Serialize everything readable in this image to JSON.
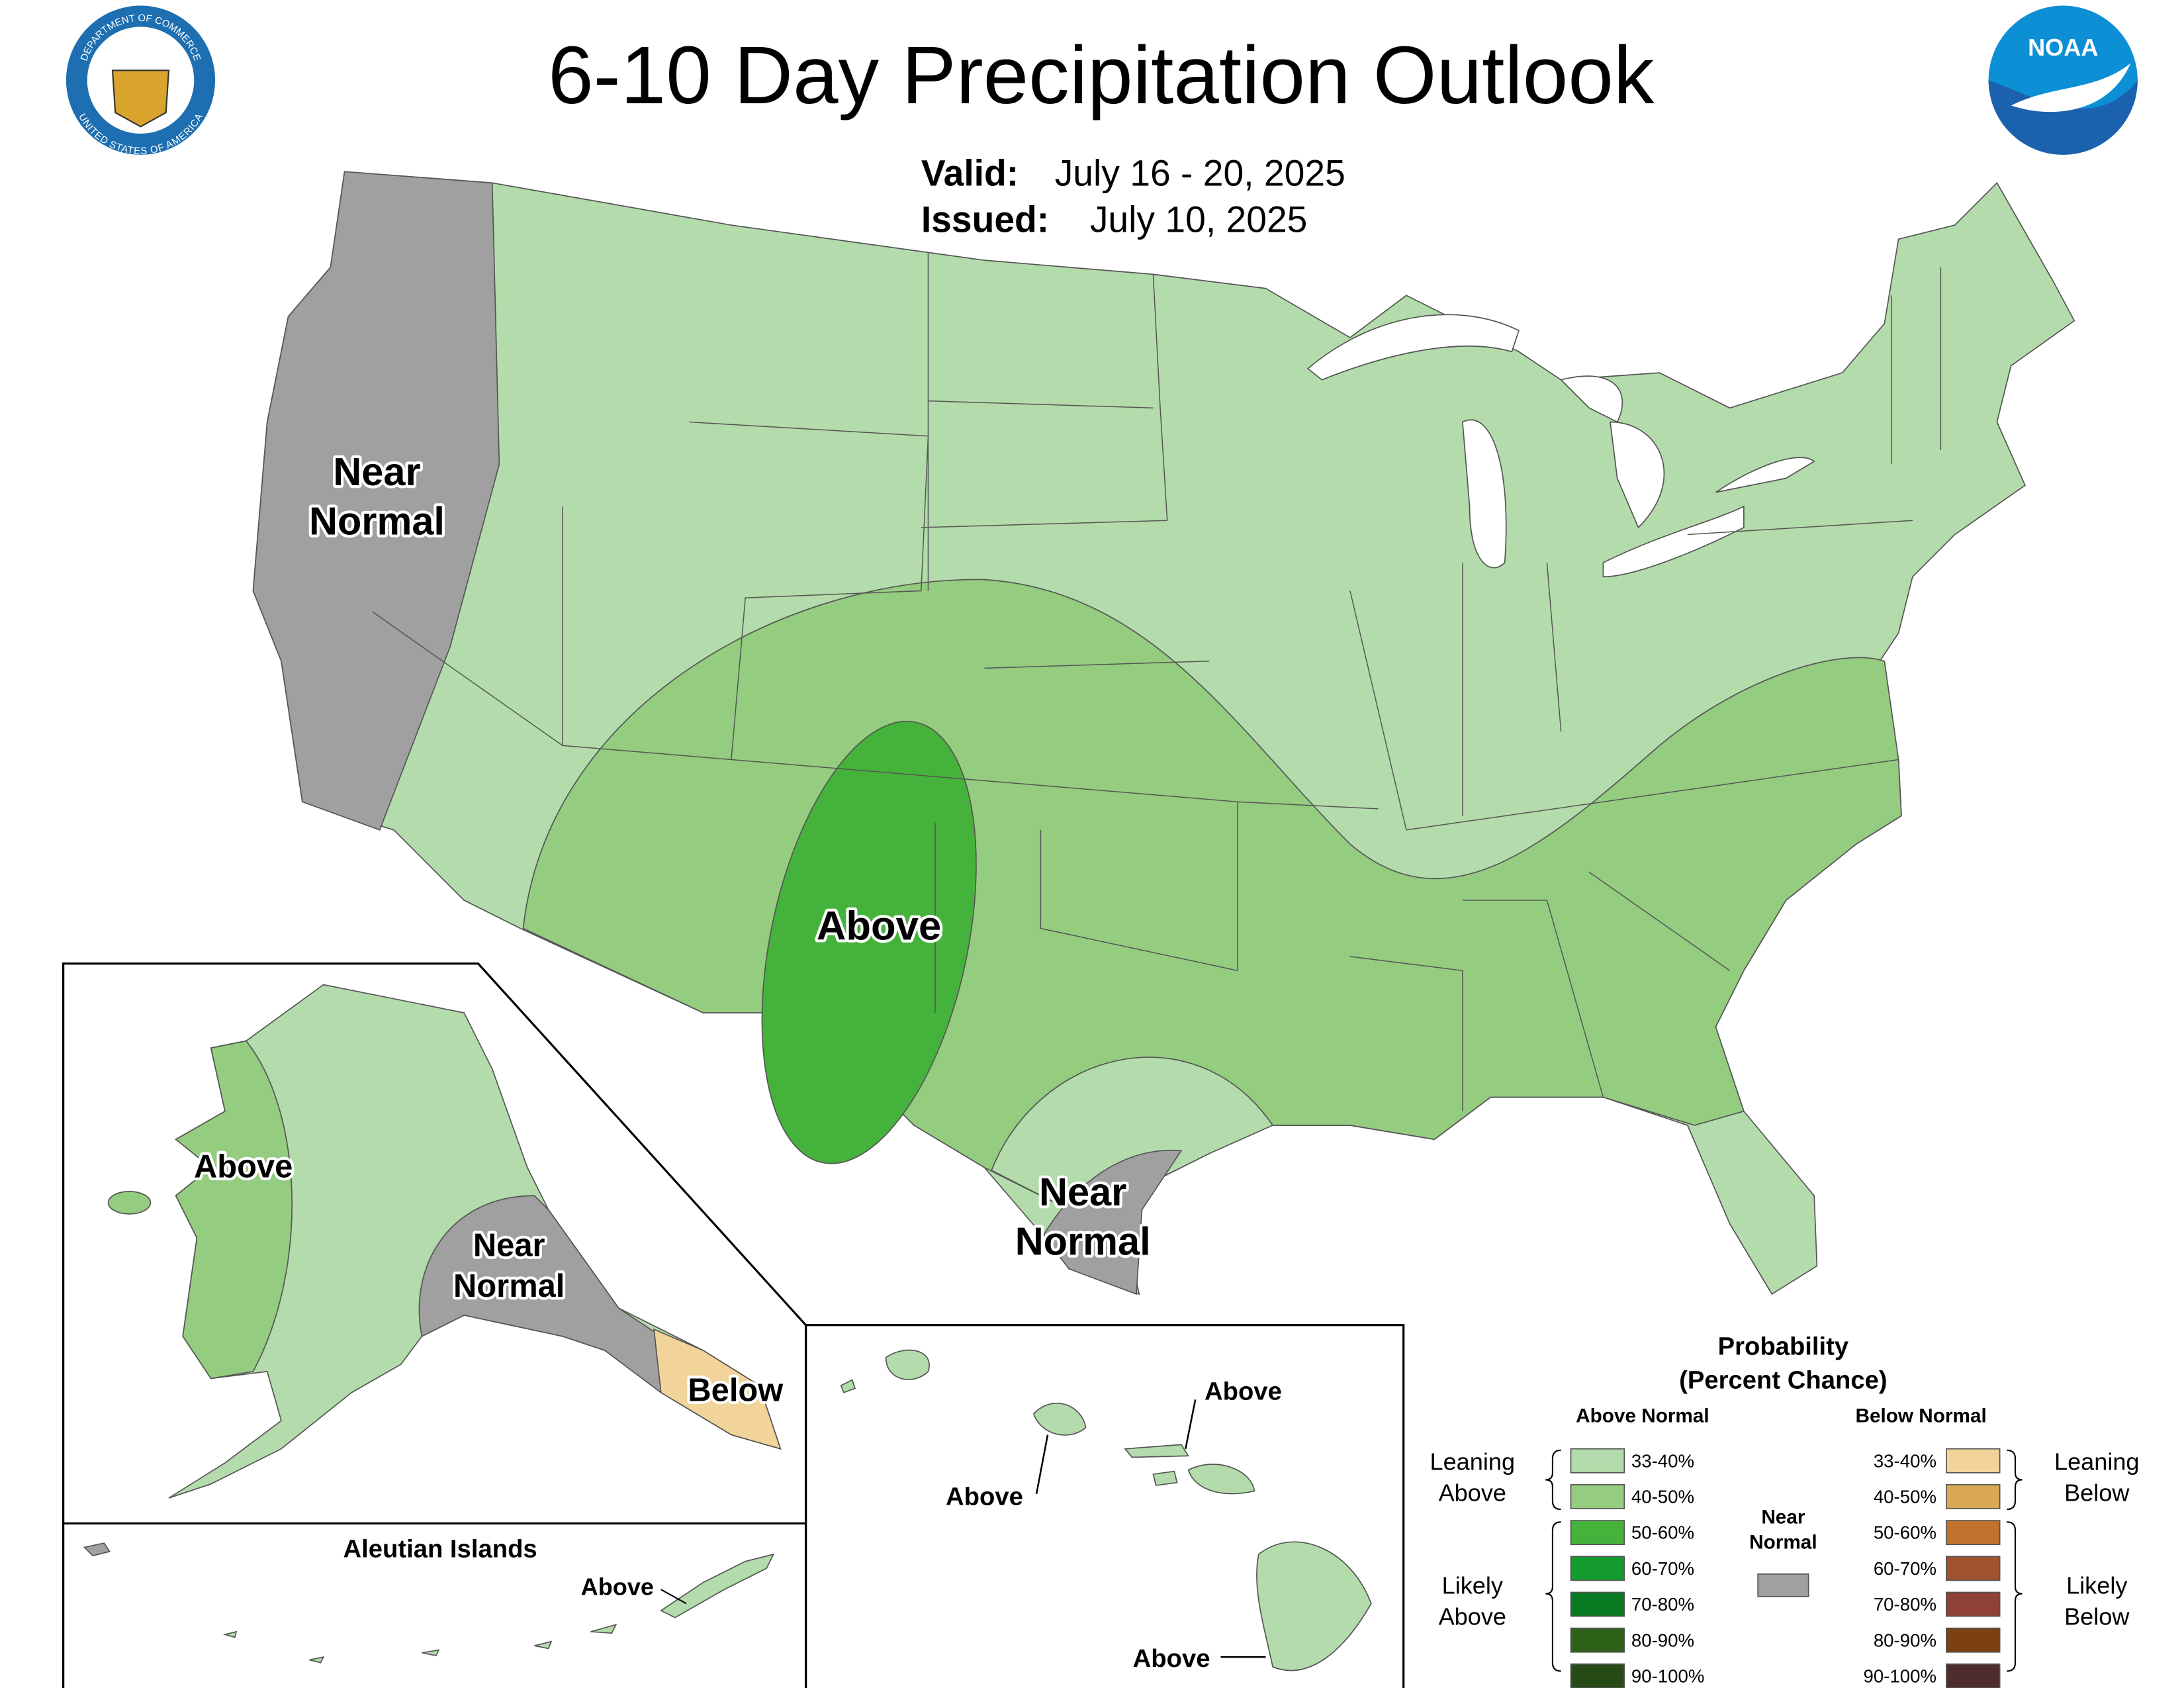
{
  "header": {
    "title": "6-10 Day Precipitation Outlook",
    "valid_label": "Valid:",
    "valid": "July 16 - 20, 2025",
    "issued_label": "Issued:",
    "issued": "July 10, 2025"
  },
  "logos": {
    "commerce_top": "DEPARTMENT OF COMMERCE",
    "commerce_bottom": "UNITED STATES OF AMERICA",
    "noaa": "NOAA"
  },
  "map_labels": {
    "conus_west": [
      "Near",
      "Normal"
    ],
    "conus_center": [
      "Above"
    ],
    "conus_texas": [
      "Near",
      "Normal"
    ],
    "alaska_west": [
      "Above"
    ],
    "alaska_south": [
      "Near",
      "Normal"
    ],
    "alaska_southeast": [
      "Below"
    ],
    "aleutian_title": "Aleutian Islands",
    "aleutian": [
      "Above"
    ],
    "hawaii_north": [
      "Above"
    ],
    "hawaii_west": [
      "Above"
    ],
    "hawaii_south": [
      "Above"
    ]
  },
  "legend": {
    "title": [
      "Probability",
      "(Percent Chance)"
    ],
    "above_header": "Above Normal",
    "below_header": "Below Normal",
    "above": [
      {
        "label": "33-40%",
        "color": "#b3dbab"
      },
      {
        "label": "40-50%",
        "color": "#94cc80"
      },
      {
        "label": "50-60%",
        "color": "#45b33b"
      },
      {
        "label": "60-70%",
        "color": "#139b2d"
      },
      {
        "label": "70-80%",
        "color": "#087b22"
      },
      {
        "label": "80-90%",
        "color": "#2f6219"
      },
      {
        "label": "90-100%",
        "color": "#264b16"
      }
    ],
    "below": [
      {
        "label": "33-40%",
        "color": "#f2d49b"
      },
      {
        "label": "40-50%",
        "color": "#d9a854"
      },
      {
        "label": "50-60%",
        "color": "#c0722e"
      },
      {
        "label": "60-70%",
        "color": "#a0522f"
      },
      {
        "label": "70-80%",
        "color": "#8f4135"
      },
      {
        "label": "80-90%",
        "color": "#7b4112"
      },
      {
        "label": "90-100%",
        "color": "#4e2d2e"
      }
    ],
    "near_normal": {
      "lines": [
        "Near",
        "Normal"
      ],
      "color": "#a0a0a0"
    },
    "groups": {
      "leaning_above": [
        "Leaning",
        "Above"
      ],
      "likely_above": [
        "Likely",
        "Above"
      ],
      "leaning_below": [
        "Leaning",
        "Below"
      ],
      "likely_below": [
        "Likely",
        "Below"
      ]
    }
  }
}
